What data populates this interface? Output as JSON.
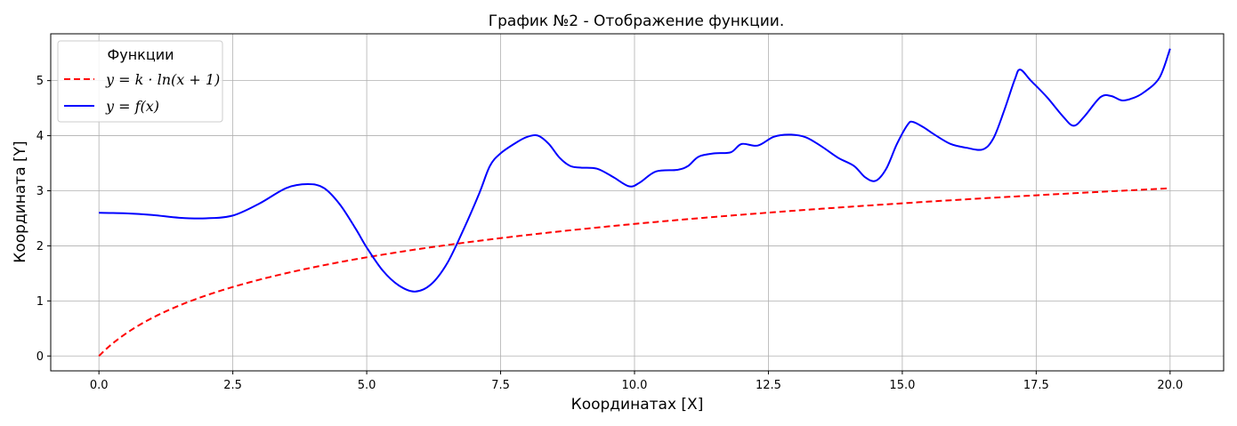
{
  "chart_data": {
    "type": "line",
    "title": "График №2 - Отображение функции.",
    "xlabel": "Координатах [X]",
    "ylabel": "Координата [Y]",
    "xlim": [
      -0.9,
      21.0
    ],
    "ylim": [
      -0.27,
      5.85
    ],
    "xticks": [
      0.0,
      2.5,
      5.0,
      7.5,
      10.0,
      12.5,
      15.0,
      17.5,
      20.0
    ],
    "xtick_labels": [
      "0.0",
      "2.5",
      "5.0",
      "7.5",
      "10.0",
      "12.5",
      "15.0",
      "17.5",
      "20.0"
    ],
    "yticks": [
      0,
      1,
      2,
      3,
      4,
      5
    ],
    "ytick_labels": [
      "0",
      "1",
      "2",
      "3",
      "4",
      "5"
    ],
    "grid": true,
    "legend": {
      "title": "Функции",
      "placement": "top-left",
      "entries": [
        "y = k · ln(x + 1)",
        "y = f(x)"
      ]
    },
    "series": [
      {
        "name": "y = k · ln(x + 1)",
        "color": "#ff0000",
        "style": "dashed",
        "function": "k*ln(x+1)",
        "k": 1.0,
        "x_range": [
          0,
          20
        ]
      },
      {
        "name": "y = f(x)",
        "color": "#0000ff",
        "style": "solid",
        "points": [
          [
            0.0,
            2.6
          ],
          [
            0.5,
            2.59
          ],
          [
            1.0,
            2.56
          ],
          [
            1.5,
            2.51
          ],
          [
            2.0,
            2.5
          ],
          [
            2.5,
            2.55
          ],
          [
            3.0,
            2.77
          ],
          [
            3.5,
            3.05
          ],
          [
            3.9,
            3.12
          ],
          [
            4.2,
            3.05
          ],
          [
            4.5,
            2.75
          ],
          [
            4.8,
            2.3
          ],
          [
            5.0,
            1.97
          ],
          [
            5.3,
            1.55
          ],
          [
            5.6,
            1.28
          ],
          [
            5.9,
            1.17
          ],
          [
            6.2,
            1.3
          ],
          [
            6.5,
            1.68
          ],
          [
            6.8,
            2.28
          ],
          [
            7.1,
            2.95
          ],
          [
            7.3,
            3.45
          ],
          [
            7.5,
            3.68
          ],
          [
            7.8,
            3.88
          ],
          [
            8.0,
            3.98
          ],
          [
            8.2,
            4.0
          ],
          [
            8.4,
            3.85
          ],
          [
            8.6,
            3.6
          ],
          [
            8.8,
            3.45
          ],
          [
            9.0,
            3.42
          ],
          [
            9.3,
            3.4
          ],
          [
            9.6,
            3.25
          ],
          [
            9.9,
            3.08
          ],
          [
            10.1,
            3.15
          ],
          [
            10.4,
            3.35
          ],
          [
            10.8,
            3.38
          ],
          [
            11.0,
            3.45
          ],
          [
            11.2,
            3.62
          ],
          [
            11.5,
            3.68
          ],
          [
            11.8,
            3.7
          ],
          [
            12.0,
            3.85
          ],
          [
            12.3,
            3.82
          ],
          [
            12.6,
            3.98
          ],
          [
            12.9,
            4.02
          ],
          [
            13.2,
            3.97
          ],
          [
            13.5,
            3.8
          ],
          [
            13.8,
            3.6
          ],
          [
            14.1,
            3.45
          ],
          [
            14.3,
            3.25
          ],
          [
            14.5,
            3.18
          ],
          [
            14.7,
            3.4
          ],
          [
            14.9,
            3.85
          ],
          [
            15.1,
            4.2
          ],
          [
            15.2,
            4.25
          ],
          [
            15.4,
            4.15
          ],
          [
            15.6,
            4.02
          ],
          [
            15.9,
            3.85
          ],
          [
            16.2,
            3.78
          ],
          [
            16.5,
            3.75
          ],
          [
            16.7,
            3.95
          ],
          [
            16.9,
            4.45
          ],
          [
            17.1,
            5.02
          ],
          [
            17.2,
            5.2
          ],
          [
            17.4,
            5.0
          ],
          [
            17.7,
            4.7
          ],
          [
            18.0,
            4.35
          ],
          [
            18.2,
            4.18
          ],
          [
            18.4,
            4.35
          ],
          [
            18.7,
            4.7
          ],
          [
            18.9,
            4.72
          ],
          [
            19.1,
            4.64
          ],
          [
            19.3,
            4.68
          ],
          [
            19.5,
            4.78
          ],
          [
            19.8,
            5.05
          ],
          [
            20.0,
            5.58
          ]
        ]
      }
    ]
  }
}
